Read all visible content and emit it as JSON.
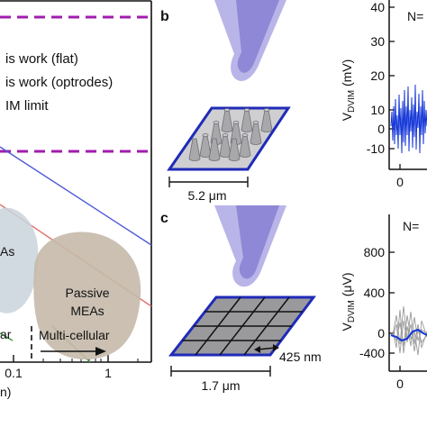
{
  "panel_a": {
    "legend": [
      "is work (flat)",
      "is work (optrodes)",
      "IM limit"
    ],
    "region_labels": {
      "meas": "As",
      "passive_line1": "Passive",
      "passive_line2": "MEAs",
      "cellular": "ar",
      "multi_cellular": "Multi-cellular"
    },
    "x_ticks": [
      "0.1",
      "1"
    ],
    "x_label_fragment": "n)",
    "colors": {
      "dashed": "#a21caf",
      "blue_line": "#4f5bd5",
      "red_line": "#e0706a",
      "green_line": "#3c9a3c",
      "blob_left": "#c9d3dc",
      "blob_passive": "#c5b9aa"
    }
  },
  "panel_b": {
    "letter": "b",
    "scale_label": "5.2 μm"
  },
  "panel_c": {
    "letter": "c",
    "scale_label": "1.7 μm",
    "gap_label": "425 nm"
  },
  "panel_top_right": {
    "n_label": "N=",
    "y_label": "V",
    "y_sub": "DVIM",
    "y_unit": " (mV)",
    "y_ticks": [
      "40",
      "30",
      "20",
      "10",
      "0",
      "-10"
    ],
    "x_ticks": [
      "0"
    ]
  },
  "panel_bottom_right": {
    "n_label": "N=",
    "y_label": "V",
    "y_sub": "DVIM",
    "y_unit": " (μV)",
    "y_ticks": [
      "800",
      "400",
      "0",
      "-400"
    ],
    "x_ticks": [
      "0"
    ]
  }
}
